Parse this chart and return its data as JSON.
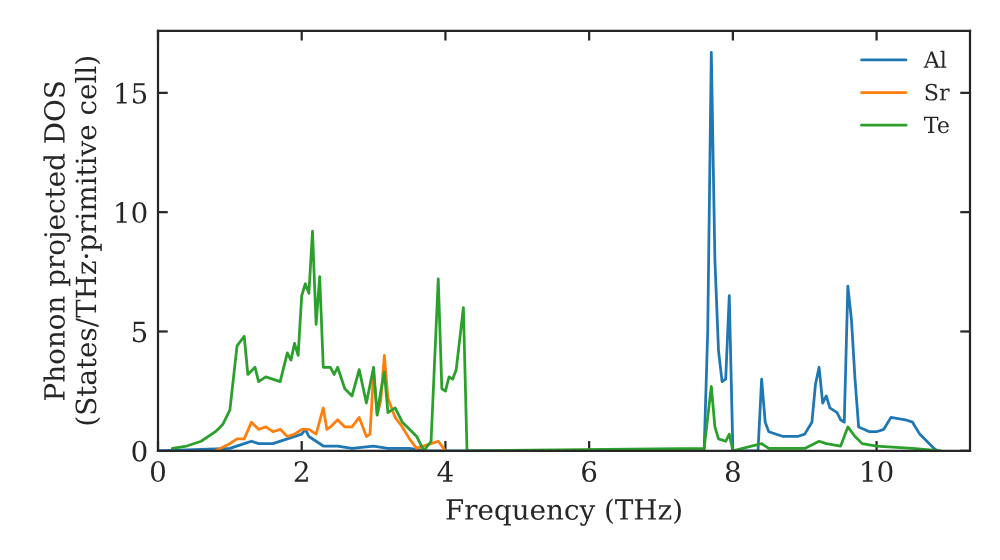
{
  "chart_data": {
    "type": "line",
    "xlabel": "Frequency (THz)",
    "ylabel": "Phonon projected DOS\n(States/THz·primitive cell)",
    "xlim": [
      0,
      11.3
    ],
    "ylim": [
      0,
      17.6
    ],
    "xticks": [
      0,
      2,
      4,
      6,
      8,
      10
    ],
    "yticks": [
      0,
      5,
      10,
      15
    ],
    "grid": false,
    "legend": "top right",
    "series": [
      {
        "name": "Al",
        "color": "#1f77b4",
        "x": [
          0,
          1.0,
          1.2,
          1.3,
          1.4,
          1.5,
          1.6,
          1.8,
          2.0,
          2.05,
          2.1,
          2.2,
          2.3,
          2.5,
          2.7,
          3.0,
          3.2,
          3.5,
          3.7,
          7.6,
          7.65,
          7.7,
          7.75,
          7.8,
          7.85,
          7.9,
          7.95,
          8.0,
          8.35,
          8.4,
          8.45,
          8.5,
          8.7,
          8.9,
          9.0,
          9.1,
          9.15,
          9.2,
          9.25,
          9.3,
          9.35,
          9.45,
          9.5,
          9.55,
          9.6,
          9.65,
          9.7,
          9.75,
          9.9,
          10.0,
          10.1,
          10.2,
          10.4,
          10.5,
          10.6,
          10.8,
          10.85
        ],
        "values": [
          0,
          0.1,
          0.3,
          0.4,
          0.3,
          0.3,
          0.3,
          0.5,
          0.7,
          0.9,
          0.6,
          0.4,
          0.2,
          0.2,
          0.1,
          0.2,
          0.1,
          0.1,
          0,
          0,
          5,
          16.7,
          8,
          4.2,
          2.9,
          3.0,
          6.5,
          0,
          0,
          3.0,
          1.2,
          0.8,
          0.6,
          0.6,
          0.7,
          1.2,
          2.8,
          3.5,
          2.0,
          2.3,
          1.8,
          1.6,
          1.3,
          1.2,
          6.9,
          5.5,
          3.0,
          1.0,
          0.8,
          0.8,
          0.9,
          1.4,
          1.3,
          1.2,
          0.7,
          0.1,
          0
        ]
      },
      {
        "name": "Sr",
        "color": "#ff7f0e",
        "x": [
          0.8,
          1.0,
          1.1,
          1.2,
          1.3,
          1.4,
          1.5,
          1.6,
          1.7,
          1.8,
          1.9,
          2.0,
          2.1,
          2.2,
          2.3,
          2.35,
          2.4,
          2.5,
          2.6,
          2.7,
          2.8,
          2.9,
          2.95,
          3.0,
          3.05,
          3.1,
          3.15,
          3.2,
          3.3,
          3.4,
          3.5,
          3.6,
          3.8,
          3.9,
          4.0
        ],
        "values": [
          0,
          0.3,
          0.5,
          0.5,
          1.2,
          0.9,
          1.0,
          0.8,
          0.9,
          0.6,
          0.7,
          0.9,
          0.9,
          0.7,
          1.8,
          0.9,
          1.0,
          1.3,
          1.0,
          1.0,
          1.4,
          0.6,
          0.7,
          3.3,
          1.5,
          2.1,
          4.0,
          2.2,
          1.4,
          1.0,
          0.5,
          0.1,
          0.3,
          0.4,
          0
        ]
      },
      {
        "name": "Te",
        "color": "#2ca02c",
        "x": [
          0.2,
          0.4,
          0.6,
          0.8,
          0.9,
          1.0,
          1.1,
          1.2,
          1.25,
          1.35,
          1.4,
          1.5,
          1.7,
          1.8,
          1.85,
          1.9,
          1.95,
          2.0,
          2.05,
          2.1,
          2.15,
          2.2,
          2.25,
          2.3,
          2.4,
          2.45,
          2.5,
          2.6,
          2.7,
          2.8,
          2.9,
          3.0,
          3.05,
          3.1,
          3.15,
          3.2,
          3.3,
          3.4,
          3.5,
          3.6,
          3.7,
          3.8,
          3.9,
          3.95,
          4.0,
          4.05,
          4.1,
          4.15,
          4.25,
          4.3,
          7.6,
          7.7,
          7.75,
          7.8,
          7.9,
          7.95,
          8.0,
          8.4,
          8.5,
          9.0,
          9.2,
          9.3,
          9.5,
          9.6,
          9.7,
          9.8,
          10.0,
          10.5,
          10.9
        ],
        "values": [
          0.1,
          0.2,
          0.4,
          0.8,
          1.1,
          1.7,
          4.4,
          4.8,
          3.2,
          3.5,
          2.9,
          3.1,
          2.9,
          4.1,
          3.8,
          4.5,
          4.0,
          6.5,
          7.0,
          6.6,
          9.2,
          5.3,
          7.3,
          3.5,
          3.5,
          3.2,
          3.5,
          2.6,
          2.3,
          3.4,
          2.0,
          3.5,
          1.5,
          2.5,
          3.3,
          1.6,
          1.8,
          1.2,
          0.9,
          0.6,
          0,
          0.4,
          7.2,
          2.6,
          2.5,
          3.1,
          3.0,
          3.4,
          6.0,
          0,
          0.1,
          2.7,
          1.0,
          0.5,
          0.4,
          0.7,
          0,
          0.3,
          0.1,
          0.1,
          0.4,
          0.3,
          0.2,
          1.0,
          0.6,
          0.3,
          0.2,
          0.1,
          0
        ]
      }
    ]
  }
}
